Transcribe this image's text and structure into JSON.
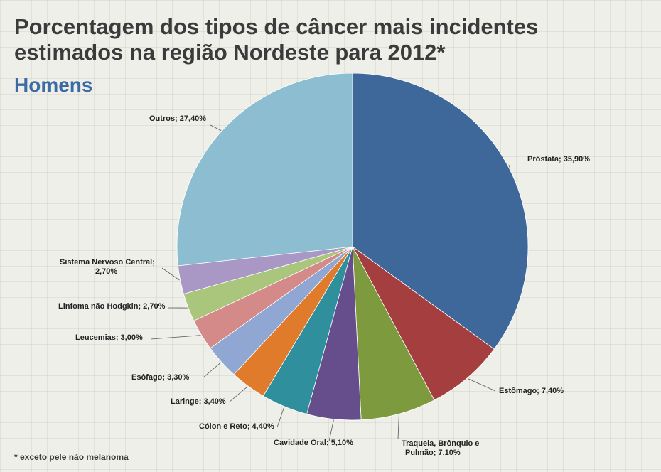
{
  "title_line1": "Porcentagem dos tipos de câncer mais incidentes",
  "title_line2": "estimados na região Nordeste para 2012*",
  "subtitle": "Homens",
  "footnote": "* exceto pele não melanoma",
  "chart_data": {
    "type": "pie",
    "title": "Porcentagem dos tipos de câncer mais incidentes estimados na região Nordeste para 2012*",
    "slices": [
      {
        "name": "Próstata",
        "value": 35.9,
        "label": "Próstata; 35,90%",
        "color": "#3e679a"
      },
      {
        "name": "Estômago",
        "value": 7.4,
        "label": "Estômago; 7,40%",
        "color": "#a53f3f"
      },
      {
        "name": "Traqueia, Brônquio e Pulmão",
        "value": 7.1,
        "label": [
          "Traqueia, Brônquio e",
          "Pulmão; 7,10%"
        ],
        "color": "#7e9a3e"
      },
      {
        "name": "Cavidade Oral",
        "value": 5.1,
        "label": "Cavidade Oral; 5,10%",
        "color": "#664d8c"
      },
      {
        "name": "Cólon e Reto",
        "value": 4.4,
        "label": "Cólon e Reto; 4,40%",
        "color": "#2f8f9c"
      },
      {
        "name": "Laringe",
        "value": 3.4,
        "label": "Laringe; 3,40%",
        "color": "#e07b2c"
      },
      {
        "name": "Esôfago",
        "value": 3.3,
        "label": "Esôfago;  3,30%",
        "color": "#8fa7d2"
      },
      {
        "name": "Leucemias",
        "value": 3.0,
        "label": "Leucemias; 3,00%",
        "color": "#d58a8a"
      },
      {
        "name": "Linfoma não Hodgkin",
        "value": 2.7,
        "label": "Linfoma não Hodgkin;  2,70%",
        "color": "#a9c67c"
      },
      {
        "name": "Sistema Nervoso Central",
        "value": 2.7,
        "label": [
          "Sistema Nervoso Central;",
          "2,70%"
        ],
        "color": "#a997c5"
      },
      {
        "name": "Outros",
        "value": 27.4,
        "label": "Outros; 27,40%",
        "color": "#8cbdd1"
      }
    ]
  }
}
